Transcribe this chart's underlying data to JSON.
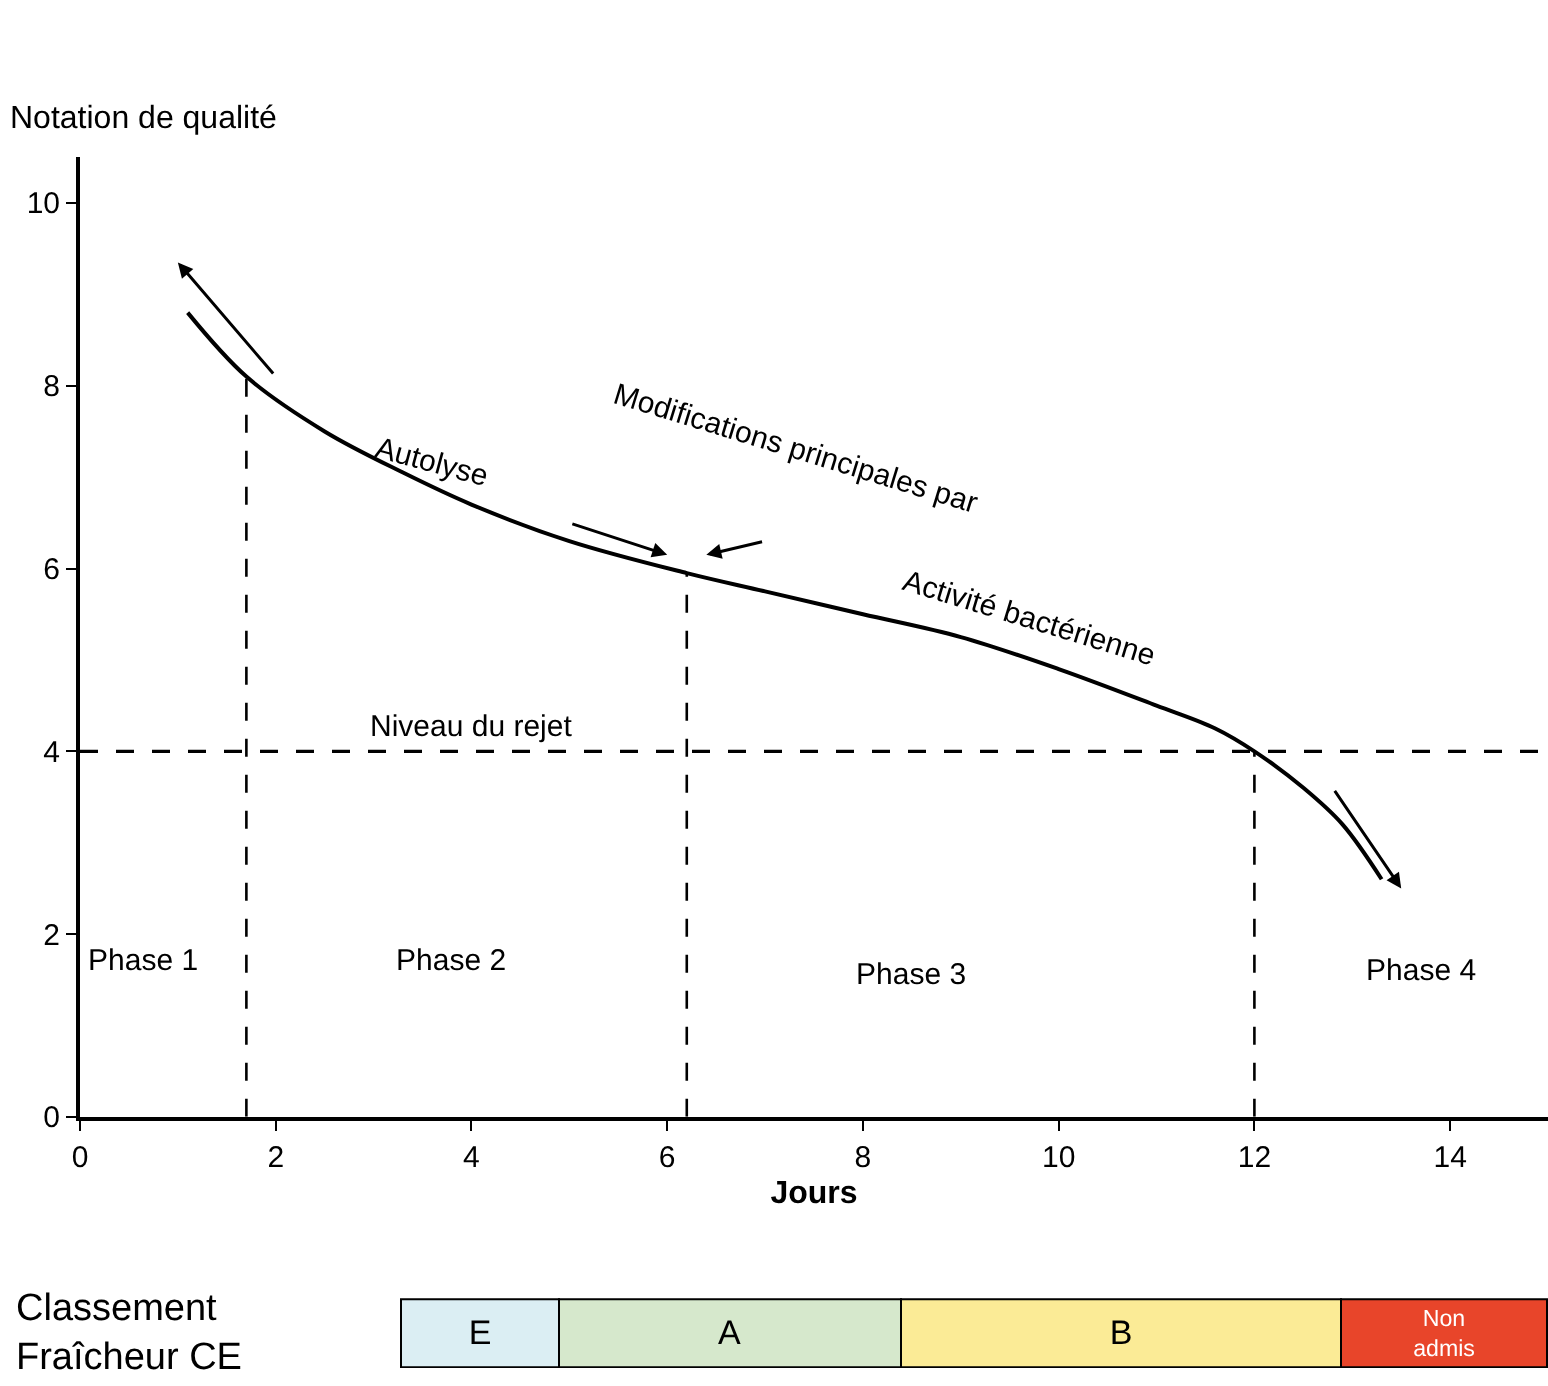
{
  "chart_data": [
    {
      "type": "line",
      "xlabel": "Jours",
      "ylabel": "Notation de qualité",
      "xlim": [
        0,
        15
      ],
      "xticks": [
        0,
        2,
        4,
        6,
        8,
        10,
        12,
        14
      ],
      "ylim": [
        0,
        10.5
      ],
      "yticks": [
        0,
        2,
        4,
        6,
        8,
        10
      ],
      "legend": false,
      "marker": "none",
      "series": [
        {
          "color": "#000000",
          "line_style": "solid",
          "x": [
            1.1,
            1.7,
            2.5,
            3.3,
            4,
            5,
            6.2,
            7,
            8,
            9,
            10,
            11,
            11.6,
            12,
            12.5,
            12.9,
            13.3
          ],
          "values": [
            8.8,
            8.1,
            7.5,
            7.05,
            6.7,
            6.3,
            5.95,
            5.75,
            5.5,
            5.25,
            4.9,
            4.5,
            4.25,
            4.0,
            3.6,
            3.2,
            2.6
          ]
        },
        {
          "color": "#000000",
          "line_style": "dashed",
          "x": [
            1.7,
            1.7
          ],
          "values": [
            0,
            8.1
          ]
        },
        {
          "color": "#000000",
          "line_style": "dashed",
          "x": [
            6.2,
            6.2
          ],
          "values": [
            0,
            5.95
          ]
        },
        {
          "color": "#000000",
          "line_style": "dashed",
          "x": [
            12,
            12
          ],
          "values": [
            0,
            4.0
          ]
        }
      ],
      "ref_lines": [
        {
          "axis": "y",
          "value": 4,
          "label": "Niveau du rejet",
          "color": "#000000",
          "line_style": "dashed"
        }
      ],
      "annotations": [
        "Autolyse",
        "Modifications principales par",
        "Activité bactérienne",
        "Phase 1",
        "Phase 2",
        "Phase 3",
        "Phase 4"
      ]
    },
    {
      "type": "bar",
      "orientation": "horizontal",
      "categories": [
        "Classement Fraîcheur CE"
      ],
      "xlim": [
        0,
        15
      ],
      "tick_labels": "y",
      "legend": false,
      "series": [
        {
          "name": "E",
          "color": "#dbeef3",
          "values": [
            1.6
          ],
          "base": [
            3.3
          ]
        },
        {
          "name": "A",
          "color": "#d6e8cc",
          "values": [
            3.5
          ],
          "base": [
            4.9
          ]
        },
        {
          "name": "B",
          "color": "#fbeb96",
          "values": [
            4.5
          ],
          "base": [
            8.4
          ]
        },
        {
          "name": "Non admis",
          "color": "#e8452a",
          "values": [
            2.1
          ],
          "base": [
            12.9
          ]
        }
      ]
    }
  ]
}
